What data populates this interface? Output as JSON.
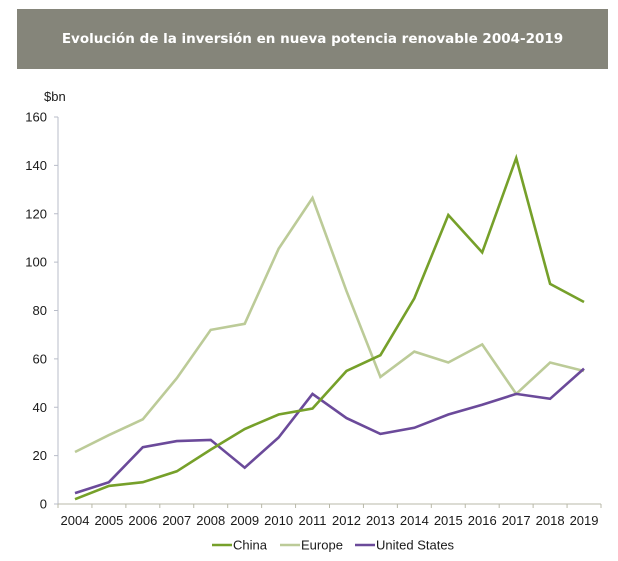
{
  "header": {
    "title": "Evolución de la inversión en nueva potencia renovable 2004-2019"
  },
  "chart_data": {
    "type": "line",
    "title": "Evolución de la inversión en nueva potencia renovable 2004-2019",
    "xlabel": "",
    "ylabel": "$bn",
    "ylim": [
      0,
      160
    ],
    "yticks": [
      0,
      20,
      40,
      60,
      80,
      100,
      120,
      140,
      160
    ],
    "grid": false,
    "legend_position": "bottom",
    "x": [
      "2004",
      "2005",
      "2006",
      "2007",
      "2008",
      "2009",
      "2010",
      "2011",
      "2012",
      "2013",
      "2014",
      "2015",
      "2016",
      "2017",
      "2018",
      "2019"
    ],
    "series": [
      {
        "name": "China",
        "color": "#76a02a",
        "values": [
          2,
          7.5,
          9,
          13.5,
          22.5,
          31,
          37,
          39.5,
          55,
          61.5,
          85,
          119.5,
          104,
          143,
          91,
          83.5
        ]
      },
      {
        "name": "Europe",
        "color": "#bccb98",
        "values": [
          21.5,
          28.5,
          35,
          52,
          72,
          74.5,
          105.5,
          126.5,
          88,
          52.5,
          63,
          58.5,
          66,
          45.5,
          58.5,
          55
        ]
      },
      {
        "name": "United States",
        "color": "#6b4a9a",
        "values": [
          4.5,
          9,
          23.5,
          26,
          26.5,
          15,
          27.5,
          45.5,
          35.5,
          29,
          31.5,
          37,
          41,
          45.5,
          43.5,
          56
        ]
      }
    ]
  }
}
